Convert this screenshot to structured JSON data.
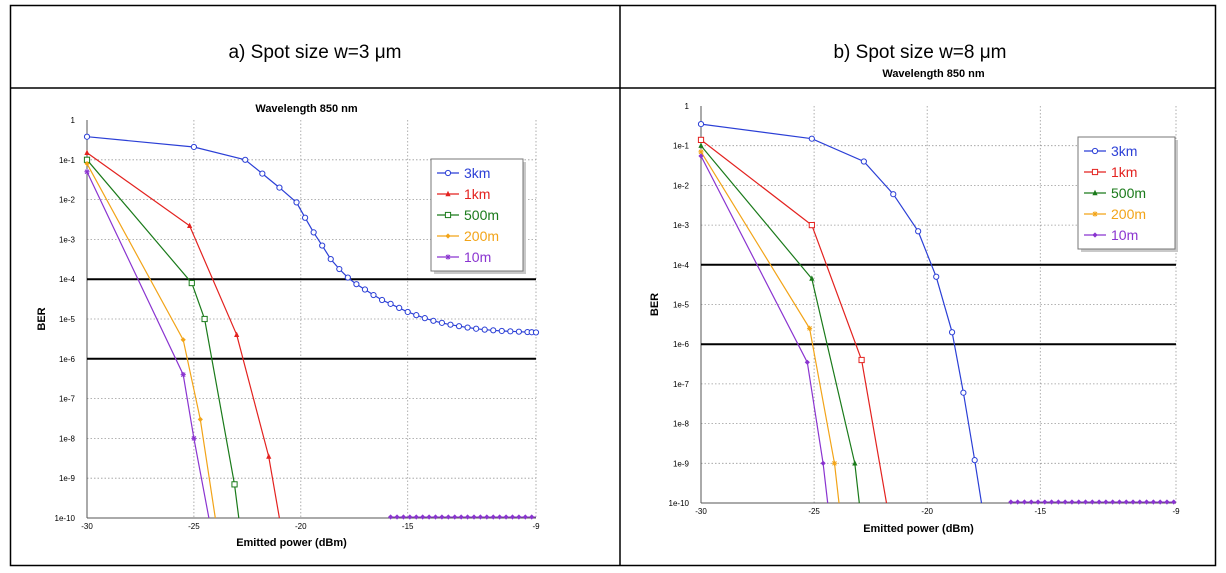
{
  "panels": [
    {
      "title": "a) Spot size w=3 μm"
    },
    {
      "title": "b) Spot size w=8 μm"
    }
  ],
  "colors": {
    "3km": "#2b3fd6",
    "1km": "#e3221f",
    "500m": "#1a7a1a",
    "200m": "#f2a418",
    "10m": "#8a34d0",
    "threshold": "#000000",
    "grid": "#9a9a9a"
  },
  "chart_data": [
    {
      "type": "line",
      "title": "Wavelength 850 nm",
      "xlabel": "Emitted power (dBm)",
      "ylabel": "BER",
      "xlim": [
        -30,
        -9
      ],
      "ylim": [
        1e-10,
        1
      ],
      "y_scale": "log",
      "x_ticks": [
        -30,
        -25,
        -20,
        -15,
        -9
      ],
      "y_ticks": [
        "1",
        "1e-1",
        "1e-2",
        "1e-3",
        "1e-4",
        "1e-5",
        "1e-6",
        "1e-7",
        "1e-8",
        "1e-9",
        "1e-10"
      ],
      "grid": true,
      "legend_position": "top-right",
      "threshold_lines": [
        0.0001,
        1e-06
      ],
      "series": [
        {
          "name": "3km",
          "marker": "circle",
          "x": [
            -30,
            -25,
            -22.6,
            -21.8,
            -21,
            -20.2,
            -19.8,
            -19.4,
            -19,
            -18.6,
            -18.2,
            -17.8,
            -17.4,
            -17,
            -16.6,
            -16.2,
            -15.8,
            -15.4,
            -15,
            -14.6,
            -14.2,
            -13.8,
            -13.4,
            -13,
            -12.6,
            -12.2,
            -11.8,
            -11.4,
            -11,
            -10.6,
            -10.2,
            -9.8,
            -9.4,
            -9.2,
            -9
          ],
          "y": [
            0.38,
            0.21,
            0.1,
            0.045,
            0.02,
            0.0085,
            0.0035,
            0.0015,
            0.0007,
            0.00032,
            0.00018,
            0.00011,
            7.5e-05,
            5.5e-05,
            4e-05,
            3e-05,
            2.4e-05,
            1.9e-05,
            1.5e-05,
            1.25e-05,
            1.05e-05,
            9e-06,
            8e-06,
            7.2e-06,
            6.6e-06,
            6.1e-06,
            5.7e-06,
            5.4e-06,
            5.2e-06,
            5e-06,
            4.9e-06,
            4.8e-06,
            4.7e-06,
            4.65e-06,
            4.6e-06
          ]
        },
        {
          "name": "1km",
          "marker": "triangle",
          "x": [
            -30,
            -25.2,
            -23,
            -21.5,
            -21
          ],
          "y": [
            0.15,
            0.0022,
            4e-06,
            3.5e-09,
            1e-10
          ]
        },
        {
          "name": "500m",
          "marker": "square",
          "x": [
            -30,
            -25.1,
            -24.5,
            -23.1,
            -22.9
          ],
          "y": [
            0.1,
            8e-05,
            1e-05,
            7e-10,
            1e-10
          ]
        },
        {
          "name": "200m",
          "marker": "diamond",
          "x": [
            -30,
            -25.5,
            -24.7,
            -24
          ],
          "y": [
            0.08,
            3e-06,
            3e-08,
            1e-10
          ]
        },
        {
          "name": "10m",
          "marker": "star",
          "x": [
            -30,
            -25.5,
            -25,
            -24.3
          ],
          "y": [
            0.05,
            4e-07,
            1e-08,
            1e-10
          ]
        }
      ],
      "floor_markers": {
        "color": "10m",
        "x_from": -15.8,
        "x_to": -9,
        "y": 1e-10
      }
    },
    {
      "type": "line",
      "title": "Wavelength 850 nm",
      "xlabel": "Emitted power (dBm)",
      "ylabel": "BER",
      "xlim": [
        -30,
        -9
      ],
      "ylim": [
        1e-10,
        1
      ],
      "y_scale": "log",
      "x_ticks": [
        -30,
        -25,
        -20,
        -15,
        -9
      ],
      "y_ticks": [
        "1",
        "1e-1",
        "1e-2",
        "1e-3",
        "1e-4",
        "1e-5",
        "1e-6",
        "1e-7",
        "1e-8",
        "1e-9",
        "1e-10"
      ],
      "grid": true,
      "legend_position": "top-right",
      "threshold_lines": [
        0.0001,
        1e-06
      ],
      "series": [
        {
          "name": "3km",
          "marker": "circle",
          "x": [
            -30,
            -25.1,
            -22.8,
            -21.5,
            -20.4,
            -19.6,
            -18.9,
            -18.4,
            -17.9,
            -17.6
          ],
          "y": [
            0.35,
            0.15,
            0.04,
            0.006,
            0.0007,
            5e-05,
            2e-06,
            6e-08,
            1.2e-09,
            1e-10
          ]
        },
        {
          "name": "1km",
          "marker": "square",
          "x": [
            -30,
            -25.1,
            -22.9,
            -21.8
          ],
          "y": [
            0.14,
            0.001,
            4e-07,
            1e-10
          ]
        },
        {
          "name": "500m",
          "marker": "triangle",
          "x": [
            -30,
            -25.1,
            -23.2,
            -23
          ],
          "y": [
            0.1,
            4.5e-05,
            1e-09,
            1e-10
          ]
        },
        {
          "name": "200m",
          "marker": "star",
          "x": [
            -30,
            -25.2,
            -24.1,
            -23.9
          ],
          "y": [
            0.07,
            2.5e-06,
            1e-09,
            1e-10
          ]
        },
        {
          "name": "10m",
          "marker": "diamond",
          "x": [
            -30,
            -25.3,
            -24.6,
            -24.4
          ],
          "y": [
            0.055,
            3.5e-07,
            1e-09,
            1e-10
          ]
        }
      ],
      "floor_markers": {
        "color": "10m",
        "x_from": -16.3,
        "x_to": -9,
        "y": 1e-10
      }
    }
  ]
}
